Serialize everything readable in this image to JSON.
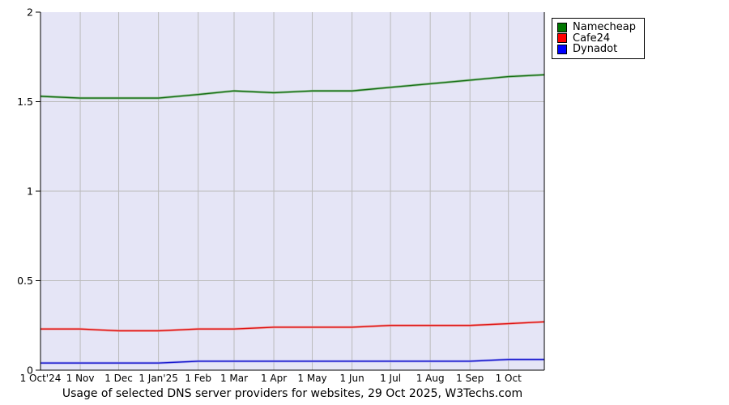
{
  "title": "Usage of selected DNS server providers for websites, 29 Oct 2025, W3Techs.com",
  "legend": {
    "items": [
      {
        "label": "Namecheap",
        "color": "#007700"
      },
      {
        "label": "Cafe24",
        "color": "#ff0000"
      },
      {
        "label": "Dynadot",
        "color": "#0000ff"
      }
    ]
  },
  "chart_data": {
    "type": "line",
    "title": "Usage of selected DNS server providers for websites, 29 Oct 2025, W3Techs.com",
    "xlabel": "",
    "ylabel": "",
    "ylim": [
      0,
      2
    ],
    "grid": true,
    "legend_position": "top-right-outside",
    "plot_bg": "#e5e5f6",
    "grid_color": "#bbbbbb",
    "axis_color": "#000000",
    "end_date": "29 Oct 2025",
    "categories": [
      "1 Oct'24",
      "1 Nov",
      "1 Dec",
      "1 Jan'25",
      "1 Feb",
      "1 Mar",
      "1 Apr",
      "1 May",
      "1 Jun",
      "1 Jul",
      "1 Aug",
      "1 Sep",
      "1 Oct"
    ],
    "y_ticks": [
      {
        "v": 0,
        "label": "0"
      },
      {
        "v": 0.5,
        "label": "0.5"
      },
      {
        "v": 1,
        "label": "1"
      },
      {
        "v": 1.5,
        "label": "1.5"
      },
      {
        "v": 2,
        "label": "2"
      }
    ],
    "series": [
      {
        "name": "Namecheap",
        "color": "#156e15",
        "glow": "#8fbf8f",
        "values": [
          1.53,
          1.52,
          1.52,
          1.52,
          1.54,
          1.56,
          1.55,
          1.56,
          1.56,
          1.58,
          1.6,
          1.62,
          1.64,
          1.65
        ]
      },
      {
        "name": "Cafe24",
        "color": "#dd1111",
        "glow": "#f2a0a0",
        "values": [
          0.23,
          0.23,
          0.22,
          0.22,
          0.23,
          0.23,
          0.24,
          0.24,
          0.24,
          0.25,
          0.25,
          0.25,
          0.26,
          0.27
        ]
      },
      {
        "name": "Dynadot",
        "color": "#1616cc",
        "glow": "#a0a0f0",
        "values": [
          0.04,
          0.04,
          0.04,
          0.04,
          0.05,
          0.05,
          0.05,
          0.05,
          0.05,
          0.05,
          0.05,
          0.05,
          0.06,
          0.06
        ]
      }
    ]
  }
}
